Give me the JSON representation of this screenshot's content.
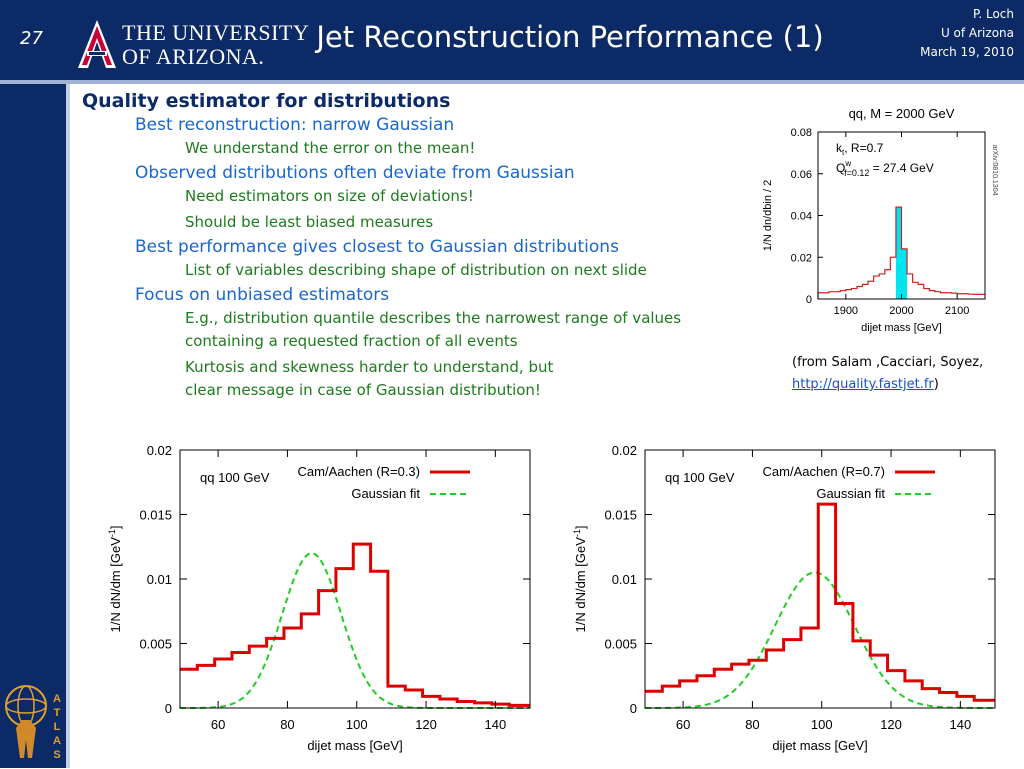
{
  "header": {
    "page_number": "27",
    "logo_line1": "THE UNIVERSITY",
    "logo_line2": "OF ARIZONA.",
    "title": "Jet Reconstruction Performance (1)",
    "author": "P. Loch",
    "affiliation": "U of Arizona",
    "date": "March 19, 2010"
  },
  "bullets": [
    {
      "level": 0,
      "text": "Quality estimator for distributions"
    },
    {
      "level": 1,
      "text": "Best reconstruction: narrow Gaussian"
    },
    {
      "level": 2,
      "text": "We understand the error on the mean!"
    },
    {
      "level": 1,
      "text": "Observed distributions often deviate from Gaussian"
    },
    {
      "level": 2,
      "text": "Need estimators on size of deviations!"
    },
    {
      "level": 2,
      "text": "Should be least biased measures"
    },
    {
      "level": 1,
      "text": "Best performance gives closest to Gaussian distributions"
    },
    {
      "level": 2,
      "text": "List of variables describing shape of distribution on next slide"
    },
    {
      "level": 1,
      "text": "Focus on unbiased estimators"
    },
    {
      "level": 2,
      "text": "E.g., distribution quantile describes the narrowest range of values"
    },
    {
      "level": 3,
      "text": "containing a requested fraction of all events"
    },
    {
      "level": 2,
      "text": "Kurtosis and skewness harder to understand, but"
    },
    {
      "level": 3,
      "text": "clear message in case of Gaussian distribution!"
    }
  ],
  "source": {
    "prefix": "(from Salam ,Cacciari, Soyez,",
    "link": "http://quality.fastjet.fr",
    "suffix": ")"
  },
  "atlas_label": "ATLAS",
  "colors": {
    "header_bg": "#0c2a66",
    "level0": "#0c2a66",
    "level1": "#1a66cc",
    "level2": "#1e7a1e",
    "histogram": "#dd0000",
    "gaussian": "#22cc22",
    "fill": "#00e5ee"
  },
  "chart_data": [
    {
      "type": "bar",
      "title": "qq, M = 2000 GeV",
      "xlabel": "dijet mass [GeV]",
      "ylabel": "1/N dn/dbin / 2",
      "side_note": "arXiv:0810.1304",
      "legend": [
        "k",
        "t",
        ", R=0.7",
        "Q",
        "w",
        "f=0.12",
        " = 27.4 GeV"
      ],
      "xlim": [
        1850,
        2150
      ],
      "ylim": [
        0,
        0.08
      ],
      "x_ticks": [
        1900,
        2000,
        2100
      ],
      "y_ticks": [
        "0",
        "0.02",
        "0.04",
        "0.06",
        "0.08"
      ],
      "bin_edges": [
        1850,
        1860,
        1870,
        1880,
        1890,
        1900,
        1910,
        1920,
        1930,
        1940,
        1950,
        1960,
        1970,
        1980,
        1990,
        2000,
        2010,
        2020,
        2030,
        2040,
        2050,
        2060,
        2070,
        2080,
        2090,
        2100,
        2110,
        2120,
        2130,
        2140,
        2150
      ],
      "values": [
        0.003,
        0.003,
        0.0035,
        0.0035,
        0.004,
        0.0045,
        0.005,
        0.006,
        0.007,
        0.0085,
        0.011,
        0.012,
        0.014,
        0.02,
        0.044,
        0.024,
        0.012,
        0.008,
        0.007,
        0.005,
        0.004,
        0.0035,
        0.003,
        0.003,
        0.0028,
        0.0025,
        0.0025,
        0.0023,
        0.0022,
        0.0022
      ],
      "highlight_range": [
        1990,
        2010
      ]
    },
    {
      "type": "line",
      "legend_title": "qq 100 GeV",
      "xlabel": "dijet mass [GeV]",
      "ylabel": "1/N dN/dm [GeV-1]",
      "xlim": [
        49,
        150
      ],
      "ylim": [
        0,
        0.02
      ],
      "x_ticks": [
        60,
        80,
        100,
        120,
        140
      ],
      "y_ticks": [
        "0",
        "0.005",
        "0.01",
        "0.015",
        "0.02"
      ],
      "series": [
        {
          "name": "Cam/Aachen (R=0.3)",
          "kind": "histogram",
          "bin_edges": [
            49,
            54,
            59,
            64,
            69,
            74,
            79,
            84,
            89,
            94,
            99,
            104,
            109,
            114,
            119,
            124,
            129,
            134,
            139,
            144,
            150
          ],
          "values": [
            0.003,
            0.0033,
            0.0038,
            0.0043,
            0.0048,
            0.0054,
            0.0062,
            0.0073,
            0.0091,
            0.0108,
            0.0127,
            0.0106,
            0.0017,
            0.0014,
            0.0009,
            0.0007,
            0.0005,
            0.0004,
            0.0003,
            0.0002
          ],
          "style": "solid"
        },
        {
          "name": "Gaussian fit",
          "kind": "gaussian",
          "mean": 87,
          "sigma": 8.5,
          "amplitude": 0.012,
          "style": "dashed"
        }
      ]
    },
    {
      "type": "line",
      "legend_title": "qq 100 GeV",
      "xlabel": "dijet mass [GeV]",
      "ylabel": "1/N dN/dm [GeV-1]",
      "xlim": [
        49,
        150
      ],
      "ylim": [
        0,
        0.02
      ],
      "x_ticks": [
        60,
        80,
        100,
        120,
        140
      ],
      "y_ticks": [
        "0",
        "0.005",
        "0.01",
        "0.015",
        "0.02"
      ],
      "series": [
        {
          "name": "Cam/Aachen (R=0.7)",
          "kind": "histogram",
          "bin_edges": [
            49,
            54,
            59,
            64,
            69,
            74,
            79,
            84,
            89,
            94,
            99,
            104,
            109,
            114,
            119,
            124,
            129,
            134,
            139,
            144,
            150
          ],
          "values": [
            0.0013,
            0.0017,
            0.0021,
            0.0025,
            0.003,
            0.0034,
            0.0037,
            0.0045,
            0.0053,
            0.0062,
            0.0158,
            0.0081,
            0.0052,
            0.0041,
            0.0029,
            0.0021,
            0.0015,
            0.0012,
            0.0009,
            0.0006
          ],
          "style": "solid"
        },
        {
          "name": "Gaussian fit",
          "kind": "gaussian",
          "mean": 98,
          "sigma": 11.5,
          "amplitude": 0.0105,
          "style": "dashed"
        }
      ]
    }
  ]
}
